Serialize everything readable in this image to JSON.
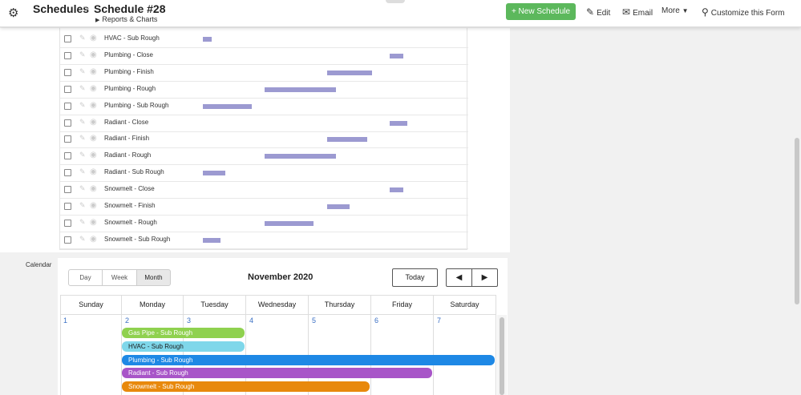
{
  "header": {
    "root_crumb": "Schedules",
    "separator": ">",
    "title": "Schedule #28",
    "sub_link": "Reports & Charts",
    "new_button": "+ New Schedule",
    "edit": "Edit",
    "email": "Email",
    "more": "More",
    "customize": "Customize this Form"
  },
  "gantt": {
    "rows": [
      {
        "label": "HVAC - Sub Rough"
      },
      {
        "label": "Plumbing - Close"
      },
      {
        "label": "Plumbing - Finish"
      },
      {
        "label": "Plumbing - Rough"
      },
      {
        "label": "Plumbing - Sub Rough"
      },
      {
        "label": "Radiant - Close"
      },
      {
        "label": "Radiant - Finish"
      },
      {
        "label": "Radiant - Rough"
      },
      {
        "label": "Radiant - Sub Rough"
      },
      {
        "label": "Snowmelt - Close"
      },
      {
        "label": "Snowmelt - Finish"
      },
      {
        "label": "Snowmelt - Rough"
      },
      {
        "label": "Snowmelt - Sub Rough"
      }
    ]
  },
  "calendar": {
    "section_label": "Calendar",
    "views": [
      "Day",
      "Week",
      "Month"
    ],
    "active_view": "Month",
    "title": "November 2020",
    "today": "Today",
    "prev_icon": "◀",
    "next_icon": "▶",
    "weekdays": [
      "Sunday",
      "Monday",
      "Tuesday",
      "Wednesday",
      "Thursday",
      "Friday",
      "Saturday"
    ],
    "dates": [
      "1",
      "2",
      "3",
      "4",
      "5",
      "6",
      "7"
    ],
    "events": [
      {
        "label": "Gas Pipe - Sub Rough",
        "color": "#8fd14f"
      },
      {
        "label": "HVAC - Sub Rough",
        "color": "#7fd7ea"
      },
      {
        "label": "Plumbing - Sub Rough",
        "color": "#1e88e5"
      },
      {
        "label": "Radiant - Sub Rough",
        "color": "#a855c8"
      },
      {
        "label": "Snowmelt - Sub Rough",
        "color": "#e8890c"
      }
    ]
  }
}
